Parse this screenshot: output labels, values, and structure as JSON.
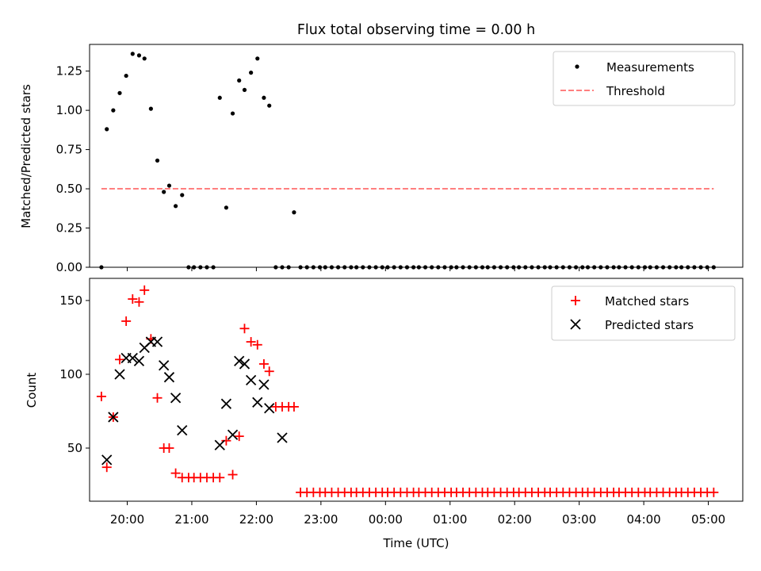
{
  "chart_data": {
    "title": "Flux total observing time = 0.00 h",
    "x_axis": {
      "label": "Time (UTC)",
      "range": [
        "19:25",
        "05:32"
      ],
      "tick_labels": [
        "20:00",
        "21:00",
        "22:00",
        "23:00",
        "00:00",
        "01:00",
        "02:00",
        "03:00",
        "04:00",
        "05:00"
      ]
    },
    "panels": [
      {
        "type": "scatter",
        "ylabel": "Matched/Predicted stars",
        "ylim": [
          0,
          1.42
        ],
        "yticks": [
          "0.00",
          "0.25",
          "0.50",
          "0.75",
          "1.00",
          "1.25"
        ],
        "legend_position": "upper-right",
        "series": [
          {
            "name": "Measurements",
            "marker": "dot",
            "color": "#000000",
            "x": [
              "19:36",
              "19:41",
              "19:47",
              "19:53",
              "19:59",
              "20:05",
              "20:11",
              "20:16",
              "20:22",
              "20:28",
              "20:34",
              "20:39",
              "20:45",
              "20:51",
              "20:57",
              "21:02",
              "21:08",
              "21:14",
              "21:20",
              "21:26",
              "21:32",
              "21:38",
              "21:44",
              "21:49",
              "21:55",
              "22:01",
              "22:07",
              "22:12",
              "22:18",
              "22:24",
              "22:30",
              "22:35",
              "22:41",
              "22:47",
              "22:53",
              "22:59",
              "23:04",
              "23:10",
              "23:16",
              "23:22",
              "23:28",
              "23:33",
              "23:39",
              "23:45",
              "23:51",
              "23:57",
              "00:02",
              "00:08",
              "00:14",
              "00:20",
              "00:26",
              "00:31",
              "00:37",
              "00:43",
              "00:49",
              "00:55",
              "01:01",
              "01:06",
              "01:12",
              "01:18",
              "01:24",
              "01:30",
              "01:35",
              "01:41",
              "01:47",
              "01:53",
              "01:59",
              "02:04",
              "02:10",
              "02:16",
              "02:22",
              "02:28",
              "02:33",
              "02:39",
              "02:45",
              "02:51",
              "02:57",
              "03:03",
              "03:08",
              "03:14",
              "03:20",
              "03:26",
              "03:32",
              "03:37",
              "03:43",
              "03:49",
              "03:55",
              "04:01",
              "04:06",
              "04:12",
              "04:18",
              "04:24",
              "04:30",
              "04:35",
              "04:41",
              "04:47",
              "04:53",
              "04:59",
              "05:05"
            ],
            "y": [
              0.0,
              0.88,
              1.0,
              1.11,
              1.22,
              1.36,
              1.35,
              1.33,
              1.01,
              0.68,
              0.48,
              0.52,
              0.39,
              0.46,
              0.0,
              0.0,
              0.0,
              0.0,
              0.0,
              1.08,
              0.38,
              0.98,
              1.19,
              1.13,
              1.24,
              1.33,
              1.08,
              1.03,
              0.0,
              0.0,
              0.0,
              0.35,
              0.0,
              0.0,
              0.0,
              0.0,
              0.0,
              0.0,
              0.0,
              0.0,
              0.0,
              0.0,
              0.0,
              0.0,
              0.0,
              0.0,
              0.0,
              0.0,
              0.0,
              0.0,
              0.0,
              0.0,
              0.0,
              0.0,
              0.0,
              0.0,
              0.0,
              0.0,
              0.0,
              0.0,
              0.0,
              0.0,
              0.0,
              0.0,
              0.0,
              0.0,
              0.0,
              0.0,
              0.0,
              0.0,
              0.0,
              0.0,
              0.0,
              0.0,
              0.0,
              0.0,
              0.0,
              0.0,
              0.0,
              0.0,
              0.0,
              0.0,
              0.0,
              0.0,
              0.0,
              0.0,
              0.0,
              0.0,
              0.0,
              0.0,
              0.0,
              0.0,
              0.0,
              0.0,
              0.0,
              0.0,
              0.0,
              0.0,
              0.0
            ]
          },
          {
            "name": "Threshold",
            "marker": "dashed-line",
            "color": "#ff7f7f",
            "x": [
              "19:36",
              "05:05"
            ],
            "y": [
              0.5,
              0.5
            ]
          }
        ]
      },
      {
        "type": "scatter",
        "ylabel": "Count",
        "ylim": [
          14,
          165
        ],
        "yticks": [
          "50",
          "100",
          "150"
        ],
        "legend_position": "upper-right",
        "series": [
          {
            "name": "Matched stars",
            "marker": "plus",
            "color": "#ff0000",
            "x": [
              "19:36",
              "19:41",
              "19:47",
              "19:53",
              "19:59",
              "20:05",
              "20:11",
              "20:16",
              "20:22",
              "20:28",
              "20:34",
              "20:39",
              "20:45",
              "20:51",
              "20:57",
              "21:02",
              "21:08",
              "21:14",
              "21:20",
              "21:26",
              "21:32",
              "21:38",
              "21:44",
              "21:49",
              "21:55",
              "22:01",
              "22:07",
              "22:12",
              "22:18",
              "22:24",
              "22:30",
              "22:35",
              "22:41",
              "22:47",
              "22:53",
              "22:59",
              "23:04",
              "23:10",
              "23:16",
              "23:22",
              "23:28",
              "23:33",
              "23:39",
              "23:45",
              "23:51",
              "23:57",
              "00:02",
              "00:08",
              "00:14",
              "00:20",
              "00:26",
              "00:31",
              "00:37",
              "00:43",
              "00:49",
              "00:55",
              "01:01",
              "01:06",
              "01:12",
              "01:18",
              "01:24",
              "01:30",
              "01:35",
              "01:41",
              "01:47",
              "01:53",
              "01:59",
              "02:04",
              "02:10",
              "02:16",
              "02:22",
              "02:28",
              "02:33",
              "02:39",
              "02:45",
              "02:51",
              "02:57",
              "03:03",
              "03:08",
              "03:14",
              "03:20",
              "03:26",
              "03:32",
              "03:37",
              "03:43",
              "03:49",
              "03:55",
              "04:01",
              "04:06",
              "04:12",
              "04:18",
              "04:24",
              "04:30",
              "04:35",
              "04:41",
              "04:47",
              "04:53",
              "04:59",
              "05:05"
            ],
            "y": [
              85,
              37,
              71,
              110,
              136,
              151,
              149,
              157,
              124,
              84,
              50,
              50,
              33,
              30,
              30,
              30,
              30,
              30,
              30,
              30,
              55,
              32,
              58,
              131,
              122,
              120,
              107,
              102,
              78,
              78,
              78,
              78,
              20,
              20,
              20,
              20,
              20,
              20,
              20,
              20,
              20,
              20,
              20,
              20,
              20,
              20,
              20,
              20,
              20,
              20,
              20,
              20,
              20,
              20,
              20,
              20,
              20,
              20,
              20,
              20,
              20,
              20,
              20,
              20,
              20,
              20,
              20,
              20,
              20,
              20,
              20,
              20,
              20,
              20,
              20,
              20,
              20,
              20,
              20,
              20,
              20,
              20,
              20,
              20,
              20,
              20,
              20,
              20,
              20,
              20,
              20,
              20,
              20,
              20,
              20,
              20,
              20,
              20,
              20
            ]
          },
          {
            "name": "Predicted stars",
            "marker": "x",
            "color": "#000000",
            "x": [
              "19:41",
              "19:47",
              "19:53",
              "19:59",
              "20:05",
              "20:11",
              "20:16",
              "20:22",
              "20:28",
              "20:34",
              "20:39",
              "20:45",
              "20:51",
              "21:26",
              "21:32",
              "21:38",
              "21:44",
              "21:49",
              "21:55",
              "22:01",
              "22:07",
              "22:12",
              "22:24"
            ],
            "y": [
              42,
              71,
              100,
              111,
              111,
              109,
              118,
              122,
              122,
              106,
              98,
              84,
              62,
              52,
              80,
              59,
              109,
              107,
              96,
              81,
              93,
              77,
              57
            ]
          }
        ]
      }
    ]
  }
}
